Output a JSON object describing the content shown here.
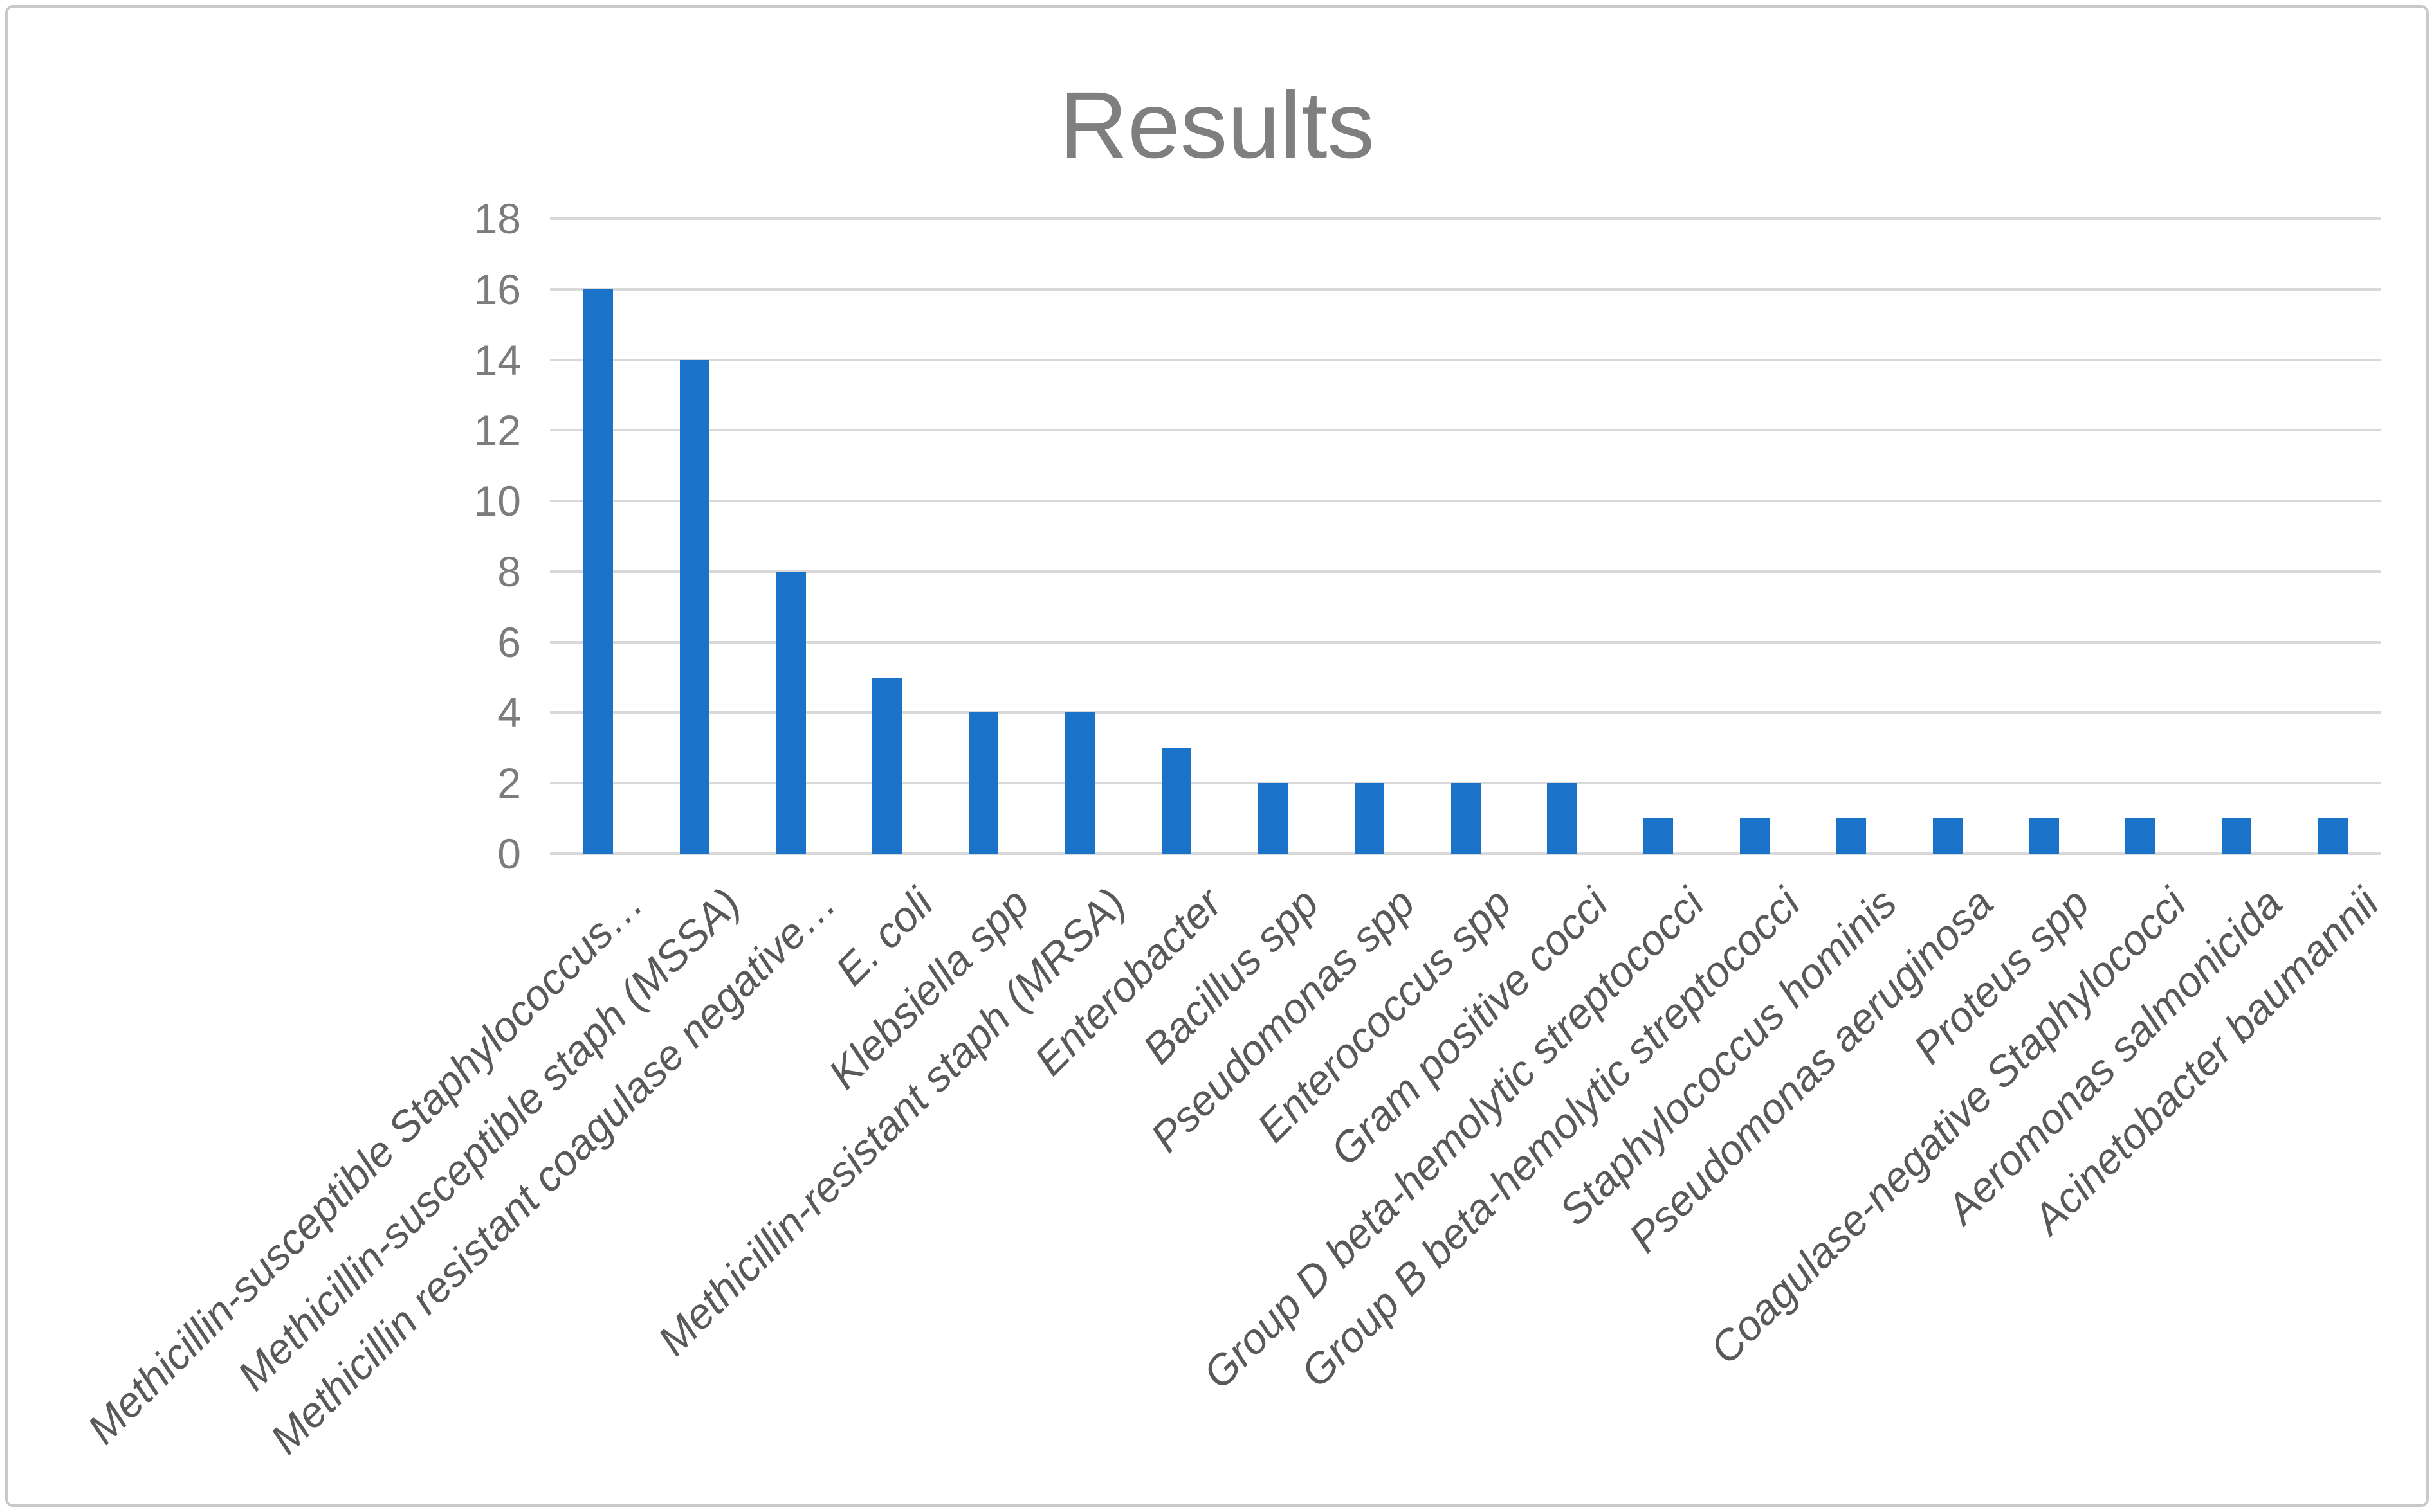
{
  "chart_data": {
    "type": "bar",
    "title": "Results",
    "categories": [
      "Methicillin-susceptible Staphylococcus…",
      "Methicillin-susceptible staph (MSSA)",
      "Methicillin resistant coagulase negative…",
      "E. coli",
      "Klebsiella spp",
      "Methicillin-resistant staph (MRSA)",
      "Enterobacter",
      "Bacillus spp",
      "Pseudomonas spp",
      "Enterococcus spp",
      "Gram positive cocci",
      "Group D beta-hemolytic streptococci",
      "Group B beta-hemolytic streptococci",
      "Staphylococcus hominis",
      "Pseudomonas aeruginosa",
      "Proteus spp",
      "Coagulase-negative Staphylococci",
      "Aeromonas salmonicida",
      "Acinetobacter baumannii"
    ],
    "values": [
      16,
      14,
      8,
      5,
      4,
      4,
      3,
      2,
      2,
      2,
      2,
      1,
      1,
      1,
      1,
      1,
      1,
      1,
      1
    ],
    "xlabel": "",
    "ylabel": "",
    "ylim": [
      0,
      18
    ],
    "ytick_step": 2,
    "ytick_labels": [
      "0",
      "2",
      "4",
      "6",
      "8",
      "10",
      "12",
      "14",
      "16",
      "18"
    ],
    "legend": "none",
    "grid": "horizontal",
    "colors": {
      "bar": "#1a73c8",
      "gridline": "#d9d9d9",
      "title_text": "#7f7f7f",
      "ytick_text": "#7c7c7c",
      "xtick_text": "#595959",
      "frame_border": "#c9c9c9",
      "background": "#ffffff"
    }
  }
}
